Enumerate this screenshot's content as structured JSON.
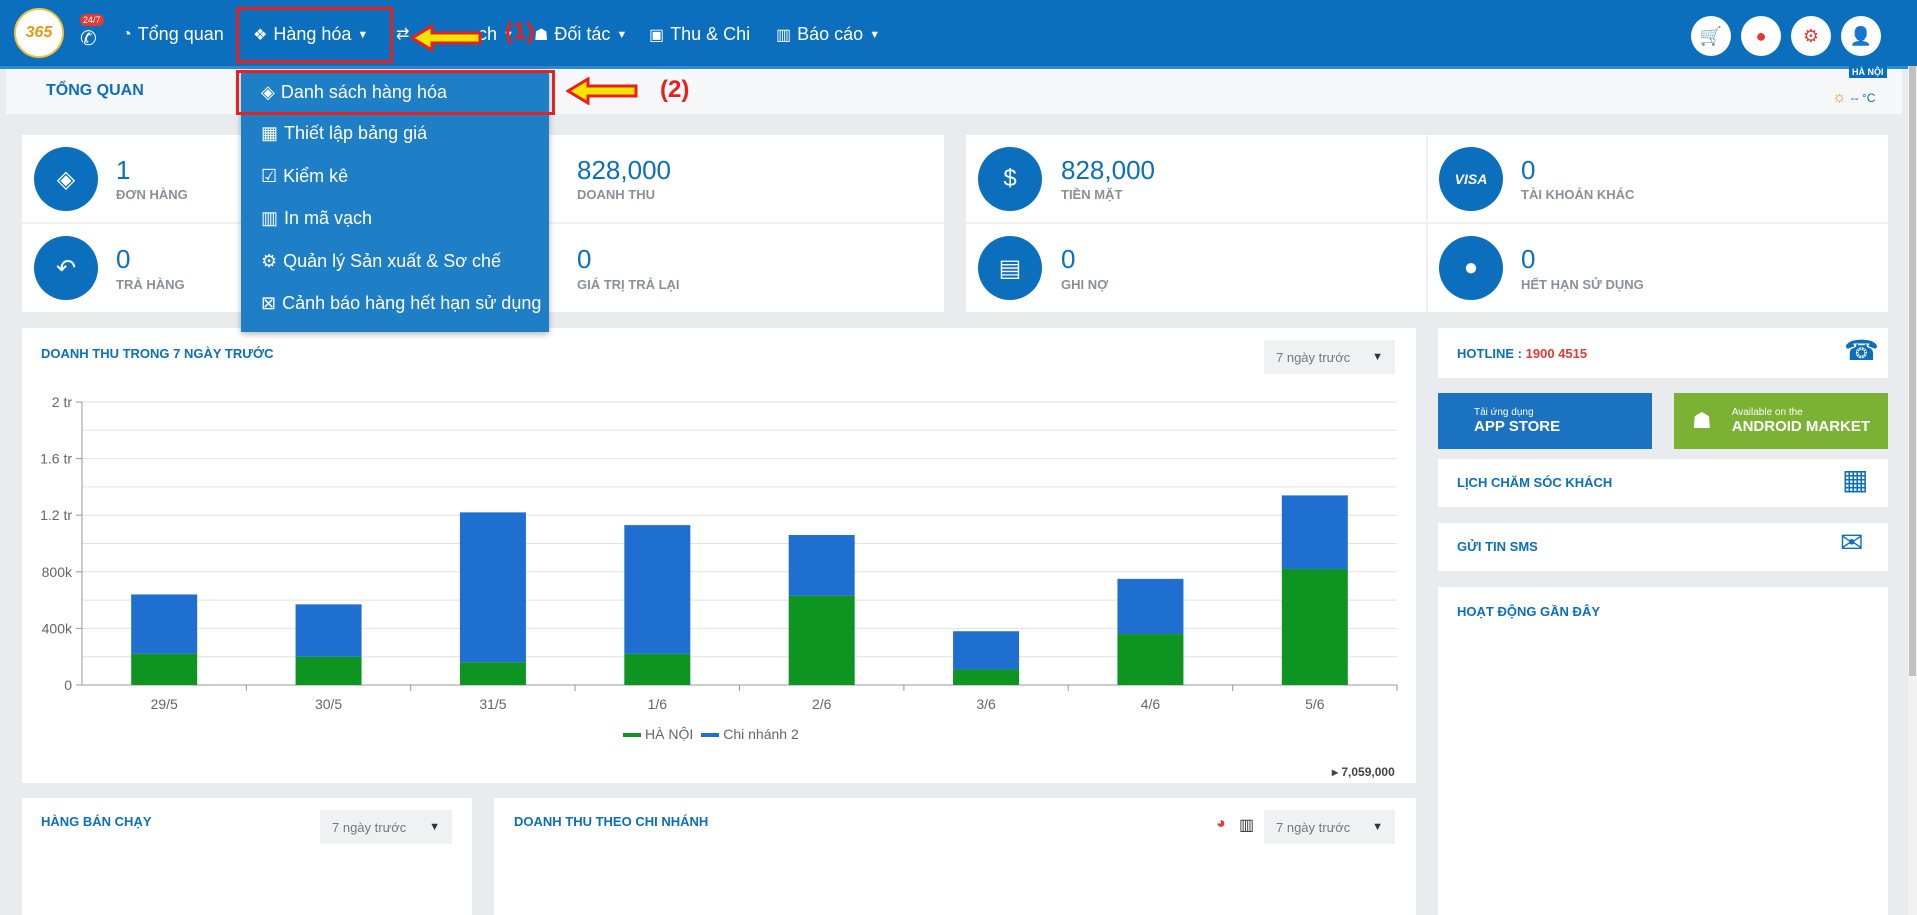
{
  "topbar": {
    "logo_text": "365",
    "badge": "24/7",
    "nav": [
      {
        "label": "Tổng quan",
        "icon": "dashboard-icon"
      },
      {
        "label": "Hàng hóa",
        "icon": "cubes-icon"
      },
      {
        "label": "ch",
        "icon": "exchange-icon"
      },
      {
        "label": "Đối tác",
        "icon": "partner-icon"
      },
      {
        "label": "Thu & Chi",
        "icon": "money-icon"
      },
      {
        "label": "Báo cáo",
        "icon": "bar-chart-icon"
      }
    ],
    "right_icons": [
      "cart-icon",
      "location-icon",
      "gear-icon",
      "user-icon"
    ]
  },
  "annotations": {
    "step1": "(1)",
    "step2": "(2)"
  },
  "subheader": {
    "title": "TỔNG QUAN",
    "location": "HÀ NỘI",
    "temperature": "-- °C"
  },
  "dropdown": {
    "items": [
      {
        "label": "Danh sách hàng hóa",
        "icon": "cube-icon"
      },
      {
        "label": "Thiết lập bảng giá",
        "icon": "calculator-icon"
      },
      {
        "label": "Kiểm kê",
        "icon": "checkbox-icon"
      },
      {
        "label": "In mã vạch",
        "icon": "barcode-icon"
      },
      {
        "label": "Quản lý Sản xuất & Sơ chế",
        "icon": "cogs-icon"
      },
      {
        "label": "Cảnh báo hàng hết hạn sử dụng",
        "icon": "calendar-x-icon"
      }
    ]
  },
  "stats": [
    {
      "value": "1",
      "label": "ĐƠN HÀNG",
      "icon": "tags-icon"
    },
    {
      "value": "828,000",
      "label": "DOANH THU",
      "icon": "revenue-icon"
    },
    {
      "value": "828,000",
      "label": "TIỀN MẶT",
      "icon": "cash-icon"
    },
    {
      "value": "0",
      "label": "TÀI KHOẢN KHÁC",
      "icon": "visa-icon"
    },
    {
      "value": "0",
      "label": "TRẢ HÀNG",
      "icon": "reply-icon"
    },
    {
      "value": "0",
      "label": "GIÁ TRỊ TRẢ LẠI",
      "icon": "return-value-icon"
    },
    {
      "value": "0",
      "label": "GHI NỢ",
      "icon": "id-card-icon"
    },
    {
      "value": "0",
      "label": "HẾT HẠN SỬ DỤNG",
      "icon": "bomb-icon"
    }
  ],
  "revenue_panel": {
    "title": "DOANH THU TRONG 7 NGÀY TRƯỚC",
    "range": "7 ngày trước",
    "total": "7,059,000"
  },
  "chart_data": {
    "type": "bar",
    "stacked": true,
    "categories": [
      "29/5",
      "30/5",
      "31/5",
      "1/6",
      "2/6",
      "3/6",
      "4/6",
      "5/6"
    ],
    "series": [
      {
        "name": "HÀ NỘI",
        "color": "#0e9420",
        "values": [
          220000,
          200000,
          160000,
          220000,
          630000,
          110000,
          360000,
          820000
        ]
      },
      {
        "name": "Chi nhánh 2",
        "color": "#1f6fd1",
        "values": [
          420000,
          370000,
          1060000,
          910000,
          430000,
          270000,
          390000,
          520000
        ]
      }
    ],
    "yticks": [
      {
        "value": 0,
        "label": "0"
      },
      {
        "value": 400000,
        "label": "400k"
      },
      {
        "value": 800000,
        "label": "800k"
      },
      {
        "value": 1200000,
        "label": "1.2 tr"
      },
      {
        "value": 1600000,
        "label": "1.6 tr"
      },
      {
        "value": 2000000,
        "label": "2 tr"
      }
    ],
    "ylim": [
      0,
      2000000
    ],
    "legend_position": "bottom",
    "grid": true
  },
  "bestseller_panel": {
    "title": "HÀNG BÁN CHẠY",
    "range": "7 ngày trước"
  },
  "branch_panel": {
    "title": "DOANH THU THEO CHI NHÁNH",
    "range": "7 ngày trước"
  },
  "sidebar": {
    "hotline_label": "HOTLINE :",
    "hotline_number": "1900 4515",
    "appstore_small": "Tải ứng dụng",
    "appstore_big": "APP STORE",
    "android_small": "Available on the",
    "android_big": "ANDROID MARKET",
    "care_schedule": "LỊCH CHĂM SÓC KHÁCH",
    "send_sms": "GỬI TIN SMS",
    "recent_activity": "HOẠT ĐỘNG GẦN ĐÂY"
  },
  "colors": {
    "primary": "#0b6fbd",
    "highlight": "#e8201f",
    "appstore": "#1a72c1",
    "android": "#7cb233"
  }
}
